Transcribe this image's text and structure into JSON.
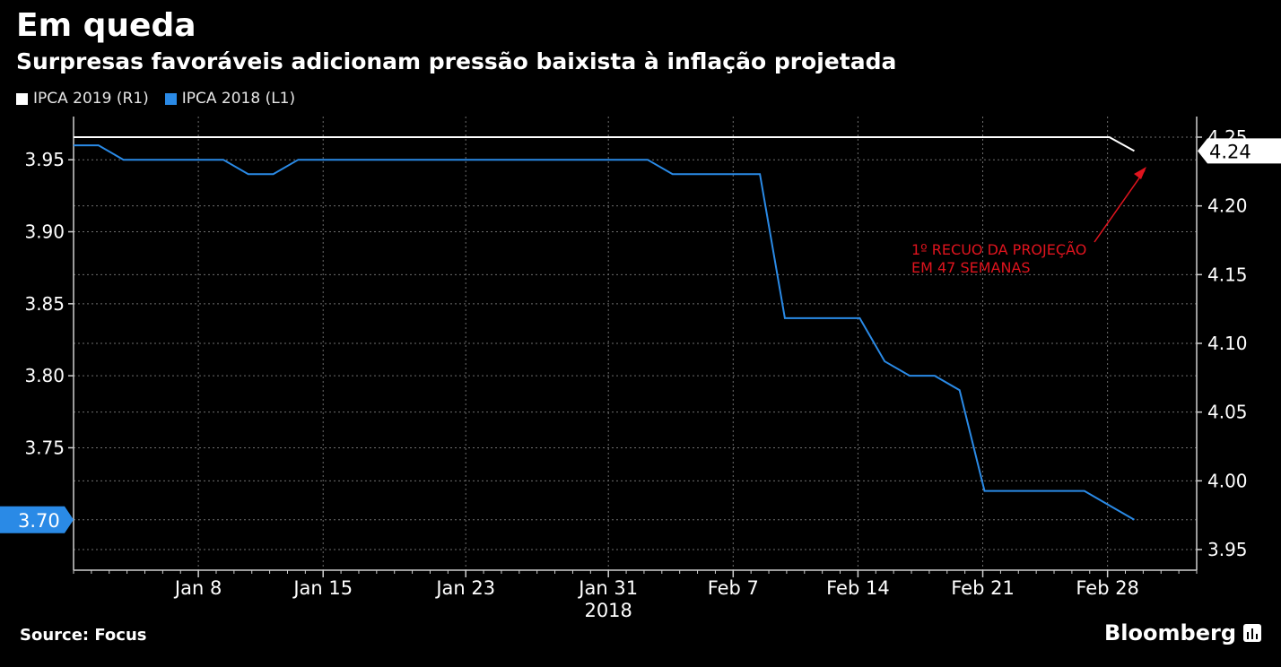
{
  "header": {
    "title": "Em queda",
    "subtitle": "Surpresas favoráveis adicionam pressão baixista à inflação projetada"
  },
  "footer": {
    "source": "Source: Focus",
    "brand": "Bloomberg",
    "brand_icon": "bloomberg-chart-icon"
  },
  "colors": {
    "ipca2019": "#ffffff",
    "ipca2018": "#2a8ae6",
    "annotation": "#e0141e",
    "grid": "#6e6e6e",
    "background": "#000000"
  },
  "chart_data": {
    "type": "line",
    "legend": [
      "IPCA 2019 (R1)",
      "IPCA 2018 (L1)"
    ],
    "legend_placement": "top-left",
    "x_unit": "days",
    "x_range": [
      0,
      63
    ],
    "x_ticks": [
      {
        "day": 7,
        "label": "Jan 8"
      },
      {
        "day": 14,
        "label": "Jan 15"
      },
      {
        "day": 22,
        "label": "Jan 23"
      },
      {
        "day": 30,
        "label": "Jan 31"
      },
      {
        "day": 37,
        "label": "Feb 7"
      },
      {
        "day": 44,
        "label": "Feb 14"
      },
      {
        "day": 51,
        "label": "Feb 21"
      },
      {
        "day": 58,
        "label": "Feb 28"
      }
    ],
    "x_year_label": "2018",
    "left_axis": {
      "ticks": [
        "3.70",
        "3.75",
        "3.80",
        "3.85",
        "3.90",
        "3.95"
      ],
      "ylim": [
        3.665,
        3.98
      ]
    },
    "right_axis": {
      "ticks": [
        "3.95",
        "4.00",
        "4.05",
        "4.10",
        "4.15",
        "4.20",
        "4.25"
      ],
      "ylim": [
        3.935,
        4.265
      ]
    },
    "grid": true,
    "series": [
      {
        "name": "IPCA 2018 (L1)",
        "axis": "left",
        "points": [
          [
            0,
            3.96
          ],
          [
            1.4,
            3.96
          ],
          [
            2.8,
            3.95
          ],
          [
            8.4,
            3.95
          ],
          [
            9.8,
            3.94
          ],
          [
            11.2,
            3.94
          ],
          [
            12.6,
            3.95
          ],
          [
            32.2,
            3.95
          ],
          [
            33.6,
            3.94
          ],
          [
            38.5,
            3.94
          ],
          [
            39.9,
            3.84
          ],
          [
            44.1,
            3.84
          ],
          [
            45.5,
            3.81
          ],
          [
            46.9,
            3.8
          ],
          [
            48.3,
            3.8
          ],
          [
            49.7,
            3.79
          ],
          [
            51.1,
            3.72
          ],
          [
            56.7,
            3.72
          ],
          [
            58.1,
            3.71
          ],
          [
            59.5,
            3.7
          ]
        ],
        "last_value_label": "3.70"
      },
      {
        "name": "IPCA 2019 (R1)",
        "axis": "right",
        "points": [
          [
            0,
            4.25
          ],
          [
            58.1,
            4.25
          ],
          [
            59.5,
            4.24
          ]
        ],
        "last_value_label": "4.24"
      }
    ],
    "annotation": {
      "lines": [
        "1º RECUO DA PROJEÇÃO",
        "EM 47 SEMANAS"
      ]
    }
  }
}
